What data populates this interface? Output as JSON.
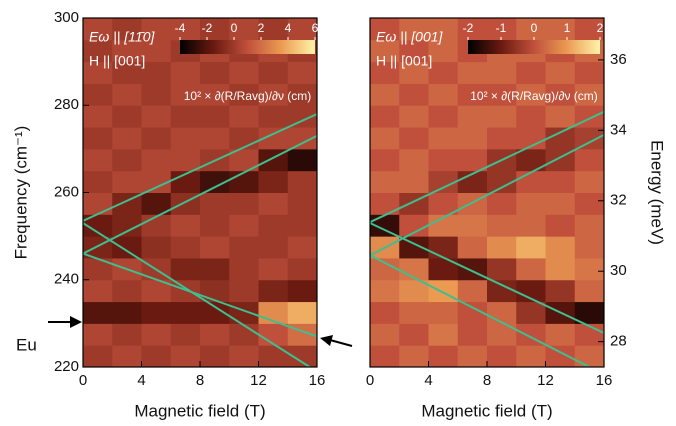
{
  "chart_data": [
    {
      "type": "heatmap",
      "xlabel": "Magnetic field (T)",
      "ylabel": "Frequency (cm⁻¹)",
      "annotations": [
        "Eω || [11̄0]",
        "H || [001]",
        "10² × ∂(R/Ravg)/∂ν (cm)",
        "Eu"
      ],
      "xlim": [
        0,
        16
      ],
      "xticks": [
        0,
        4,
        8,
        12,
        16
      ],
      "ylim": [
        220,
        300
      ],
      "yticks": [
        220,
        240,
        260,
        280,
        300
      ],
      "clim": [
        -4,
        6
      ],
      "cticks": [
        -4,
        -2,
        0,
        2,
        4,
        6
      ],
      "x_bins": [
        0,
        2,
        4,
        6,
        8,
        10,
        12,
        14,
        16
      ],
      "y_bins": [
        220,
        225,
        230,
        235,
        240,
        245,
        250,
        255,
        260,
        265,
        270,
        275,
        280,
        285,
        290,
        295,
        300
      ],
      "z": [
        [
          0,
          0.5,
          0,
          0.5,
          0,
          0.5,
          0,
          0
        ],
        [
          0.5,
          0,
          0.5,
          0,
          0.5,
          0,
          1,
          2
        ],
        [
          -2,
          -2,
          -1.5,
          -1.5,
          -1.5,
          -1,
          3,
          4
        ],
        [
          0.5,
          0,
          0.5,
          0,
          -0.5,
          0,
          -1,
          -1.5
        ],
        [
          0,
          0.5,
          0,
          -1,
          -1,
          0,
          0.5,
          0
        ],
        [
          -1,
          -1.5,
          -0.5,
          0,
          0.5,
          0,
          0,
          0.5
        ],
        [
          -1.5,
          -1,
          0,
          0.5,
          0,
          0.5,
          0,
          0
        ],
        [
          0.5,
          -1,
          -2,
          -0.5,
          0,
          0,
          0.5,
          0
        ],
        [
          0,
          0.5,
          0.5,
          -1.5,
          -2.5,
          -2,
          -1,
          0
        ],
        [
          0.5,
          0,
          0.5,
          0.5,
          0,
          0.5,
          -2,
          -3
        ],
        [
          0,
          0.5,
          0,
          0.5,
          0.5,
          0,
          0.5,
          0.5
        ],
        [
          0.5,
          0,
          0.5,
          0,
          0,
          0.5,
          0,
          0
        ],
        [
          0,
          0.5,
          0,
          0.5,
          0.5,
          0,
          0.5,
          0
        ],
        [
          0.5,
          0,
          0,
          0.5,
          0,
          0.5,
          0,
          0.5
        ],
        [
          0,
          0.5,
          0.5,
          0,
          0.5,
          0,
          0.5,
          0
        ],
        [
          0.5,
          0,
          0.5,
          0.5,
          0,
          0.5,
          0,
          0.5
        ]
      ],
      "lines": [
        {
          "color": "#3dbf8f",
          "x": [
            0,
            16
          ],
          "y": [
            253.5,
            278
          ]
        },
        {
          "color": "#3dbf8f",
          "x": [
            0,
            16
          ],
          "y": [
            246,
            273
          ]
        },
        {
          "color": "#3dbf8f",
          "x": [
            0,
            15.5
          ],
          "y": [
            253,
            220
          ]
        },
        {
          "color": "#3dbf8f",
          "x": [
            0,
            16
          ],
          "y": [
            246,
            227
          ]
        }
      ]
    },
    {
      "type": "heatmap",
      "xlabel": "Magnetic field (T)",
      "y2label": "Energy (meV)",
      "annotations": [
        "Eω || [001]",
        "H || [001]",
        "10² × ∂(R/Ravg)/∂ν (cm)"
      ],
      "xlim": [
        0,
        16
      ],
      "xticks": [
        0,
        4,
        8,
        12,
        16
      ],
      "ylim": [
        220,
        300
      ],
      "y2lim": [
        27.28,
        37.19
      ],
      "y2ticks": [
        28,
        30,
        32,
        34,
        36
      ],
      "clim": [
        -2,
        2
      ],
      "cticks": [
        -2,
        -1,
        0,
        1,
        2
      ],
      "x_bins": [
        0,
        2,
        4,
        6,
        8,
        10,
        12,
        14,
        16
      ],
      "y_bins": [
        220,
        225,
        230,
        235,
        240,
        245,
        250,
        255,
        260,
        265,
        270,
        275,
        280,
        285,
        290,
        295,
        300
      ],
      "z": [
        [
          0,
          0.3,
          0,
          0.3,
          0,
          0.3,
          0,
          0.3
        ],
        [
          0.3,
          0,
          0.5,
          0,
          0.3,
          0,
          0.3,
          0
        ],
        [
          0,
          0.3,
          0.3,
          0,
          0.3,
          -0.5,
          -1.2,
          -1.6
        ],
        [
          0.5,
          0.8,
          1,
          0.3,
          -0.8,
          -1,
          -0.5,
          0.3
        ],
        [
          0.3,
          0.5,
          -1,
          -1.2,
          -0.5,
          0.3,
          0.8,
          0.5
        ],
        [
          0.8,
          -1.2,
          -0.8,
          0.3,
          0.8,
          1.2,
          0.8,
          0.3
        ],
        [
          -1.5,
          0,
          0.5,
          0.5,
          0.3,
          0.3,
          0,
          0.3
        ],
        [
          0,
          -0.5,
          0,
          0.3,
          0,
          0.3,
          0.3,
          0
        ],
        [
          0.3,
          0.3,
          -0.3,
          -0.8,
          -0.5,
          0,
          0,
          0.3
        ],
        [
          0,
          0.3,
          0,
          0,
          -0.5,
          -0.8,
          -0.5,
          0
        ],
        [
          0.3,
          0,
          0.3,
          0.3,
          0,
          0,
          -0.5,
          -0.3
        ],
        [
          0,
          0.3,
          0,
          0.3,
          0.3,
          0,
          0.3,
          0
        ],
        [
          0.3,
          0,
          0.3,
          0,
          0,
          0.3,
          0,
          0.3
        ],
        [
          0,
          0.3,
          0,
          0.3,
          0.3,
          0,
          0.3,
          0
        ],
        [
          0.3,
          0,
          0.3,
          0,
          0.3,
          0.3,
          0,
          0.3
        ],
        [
          0,
          0.3,
          0.3,
          0,
          0,
          0.3,
          0.3,
          0
        ]
      ],
      "lines": [
        {
          "color": "#3dbf8f",
          "x": [
            0,
            16
          ],
          "y": [
            253.2,
            278.5
          ]
        },
        {
          "color": "#3dbf8f",
          "x": [
            0,
            16
          ],
          "y": [
            245.6,
            273.2
          ]
        },
        {
          "color": "#3dbf8f",
          "x": [
            0,
            16
          ],
          "y": [
            253,
            227.8
          ]
        },
        {
          "color": "#3dbf8f",
          "x": [
            0,
            15
          ],
          "y": [
            245.6,
            220
          ]
        }
      ]
    }
  ]
}
